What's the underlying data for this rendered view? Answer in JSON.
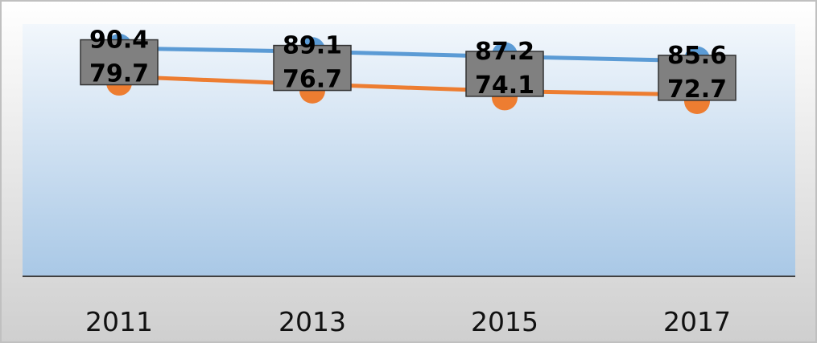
{
  "chart_data": {
    "type": "line",
    "title": "",
    "xlabel": "",
    "ylabel": "",
    "categories": [
      "2011",
      "2013",
      "2015",
      "2017"
    ],
    "series": [
      {
        "values": [
          90.4,
          89.1,
          87.2,
          85.6
        ],
        "color": "#5b9bd5"
      },
      {
        "values": [
          79.7,
          76.7,
          74.1,
          72.7
        ],
        "color": "#ed7d31"
      }
    ],
    "data_labels": {
      "top": [
        "90.4",
        "89.1",
        "87.2",
        "85.6"
      ],
      "bottom": [
        "79.7",
        "76.7",
        "74.1",
        "72.7"
      ]
    },
    "grid": false,
    "legend": "none",
    "colors": {
      "label_box": "#808080",
      "plot_top": "#f2f7fc",
      "plot_bottom": "#a9c8e6",
      "frame": "#c0c0c0",
      "baseline": "#404040"
    }
  }
}
